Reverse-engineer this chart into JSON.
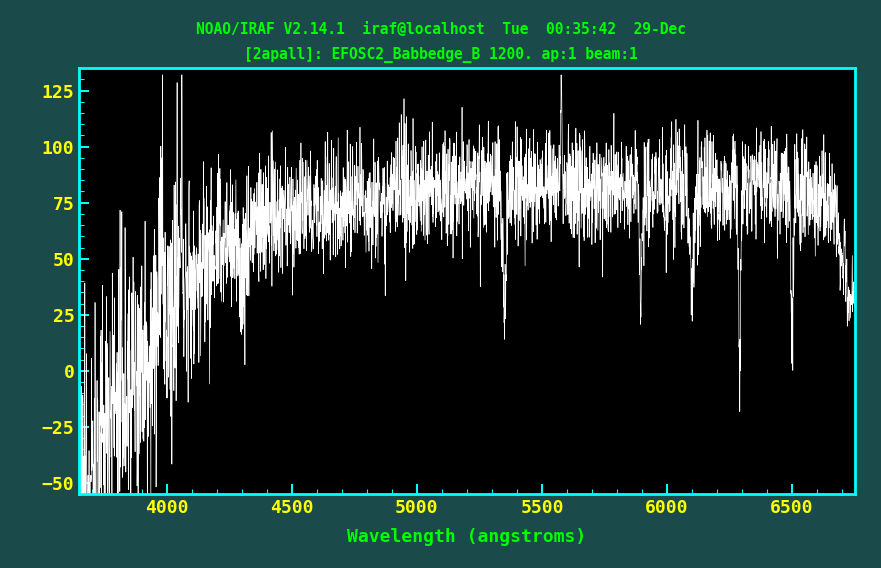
{
  "title_line1": "NOAO/IRAF V2.14.1  iraf@localhost  Tue  00:35:42  29-Dec",
  "title_line2": "[2apall]: EFOSC2_Babbedge_B 1200. ap:1 beam:1",
  "xlabel": "Wavelength (angstroms)",
  "background_color": "#000000",
  "outer_background": "#1a4a4a",
  "title_color": "#00ff00",
  "tick_label_color": "#ffff00",
  "xlabel_color": "#00ff00",
  "spine_color": "#00ffff",
  "tick_color": "#00ffff",
  "spectrum_color": "#ffffff",
  "xmin": 3650,
  "xmax": 6750,
  "ymin": -55,
  "ymax": 135,
  "yticks": [
    125,
    100,
    75,
    50,
    25,
    0,
    -25,
    -50
  ],
  "xticks": [
    4000,
    4500,
    5000,
    5500,
    6000,
    6500
  ]
}
